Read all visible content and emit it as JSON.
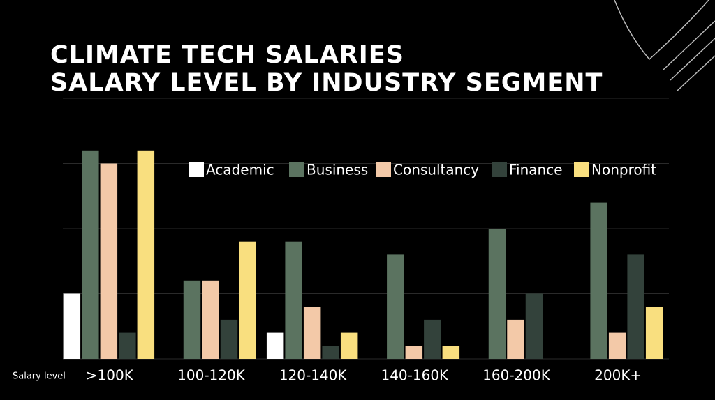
{
  "chart_data": {
    "type": "bar",
    "title": "CLIMATE TECH SALARIES",
    "subtitle": "SALARY LEVEL BY INDUSTRY SEGMENT",
    "x_label": "Salary level",
    "categories": [
      ">100K",
      "100-120K",
      "120-140K",
      "140-160K",
      "160-200K",
      "200K+"
    ],
    "series": [
      {
        "name": "Academic",
        "color": "#ffffff",
        "values": [
          5,
          0,
          2,
          0,
          0,
          0
        ]
      },
      {
        "name": "Business",
        "color": "#5b7360",
        "values": [
          16,
          6,
          9,
          8,
          10,
          12
        ]
      },
      {
        "name": "Consultancy",
        "color": "#f3c9a8",
        "values": [
          15,
          6,
          4,
          1,
          3,
          2
        ]
      },
      {
        "name": "Finance",
        "color": "#33423b",
        "values": [
          2,
          3,
          1,
          3,
          5,
          8
        ]
      },
      {
        "name": "Nonprofit",
        "color": "#f9df7f",
        "values": [
          16,
          9,
          2,
          1,
          0,
          4
        ]
      }
    ],
    "ylim": [
      0,
      20
    ],
    "yticks": [
      0,
      5,
      10,
      15,
      20
    ],
    "grid": true,
    "legend": "top-right"
  }
}
